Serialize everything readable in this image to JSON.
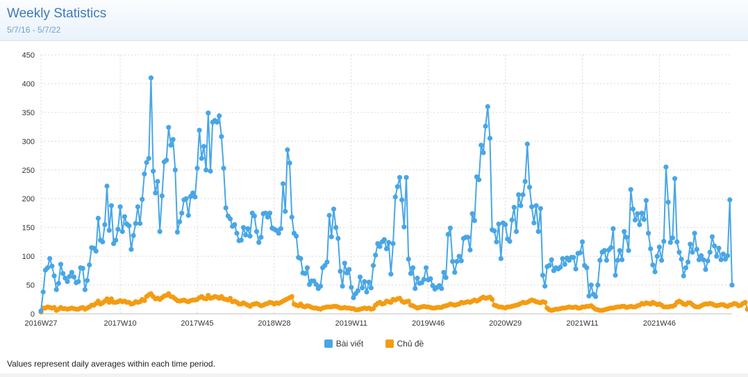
{
  "header": {
    "title": "Weekly Statistics",
    "subtitle": "5/7/16 - 5/7/22"
  },
  "footnote": "Values represent daily averages within each time period.",
  "colors": {
    "series1": "#48a6e6",
    "series2": "#f39c12",
    "grid": "#d9d9d9"
  },
  "chart_data": {
    "type": "line",
    "title": "Weekly Statistics",
    "xlabel": "",
    "ylabel": "",
    "ylim": [
      0,
      450
    ],
    "yticks": [
      0,
      50,
      100,
      150,
      200,
      250,
      300,
      350,
      400,
      450
    ],
    "xtick_labels": [
      {
        "index": 0,
        "label": "2016W27"
      },
      {
        "index": 36,
        "label": "2017W10"
      },
      {
        "index": 71,
        "label": "2017W45"
      },
      {
        "index": 106,
        "label": "2018W28"
      },
      {
        "index": 141,
        "label": "2019W11"
      },
      {
        "index": 176,
        "label": "2019W46"
      },
      {
        "index": 211,
        "label": "2020W29"
      },
      {
        "index": 246,
        "label": "2021W11"
      },
      {
        "index": 281,
        "label": "2021W46"
      }
    ],
    "legend": "bottom",
    "series": [
      {
        "name": "Bài viết",
        "color": "#48a6e6",
        "values": [
          5,
          38,
          76,
          80,
          96,
          83,
          66,
          42,
          53,
          86,
          70,
          62,
          56,
          65,
          72,
          64,
          54,
          56,
          80,
          79,
          42,
          58,
          85,
          115,
          114,
          109,
          166,
          128,
          125,
          155,
          222,
          145,
          188,
          122,
          128,
          147,
          186,
          143,
          169,
          156,
          153,
          112,
          136,
          157,
          186,
          157,
          199,
          243,
          263,
          270,
          410,
          248,
          210,
          230,
          143,
          205,
          264,
          267,
          324,
          293,
          303,
          250,
          142,
          160,
          175,
          198,
          200,
          171,
          204,
          210,
          203,
          253,
          319,
          270,
          291,
          250,
          349,
          248,
          333,
          336,
          333,
          344,
          308,
          253,
          184,
          170,
          165,
          152,
          155,
          140,
          127,
          128,
          150,
          137,
          148,
          135,
          175,
          170,
          143,
          124,
          133,
          174,
          175,
          168,
          175,
          149,
          147,
          145,
          140,
          148,
          226,
          178,
          285,
          262,
          168,
          140,
          135,
          98,
          96,
          71,
          70,
          80,
          51,
          57,
          57,
          51,
          44,
          48,
          80,
          84,
          90,
          171,
          134,
          182,
          150,
          131,
          74,
          48,
          88,
          71,
          77,
          46,
          28,
          35,
          40,
          64,
          45,
          56,
          38,
          55,
          45,
          84,
          102,
          122,
          117,
          125,
          129,
          113,
          124,
          69,
          122,
          203,
          221,
          237,
          198,
          151,
          237,
          95,
          70,
          80,
          44,
          62,
          53,
          54,
          60,
          80,
          59,
          61,
          49,
          43,
          46,
          49,
          44,
          72,
          63,
          138,
          149,
          91,
          72,
          91,
          100,
          92,
          131,
          133,
          133,
          111,
          174,
          162,
          238,
          233,
          293,
          280,
          326,
          360,
          305,
          146,
          144,
          125,
          156,
          96,
          158,
          155,
          130,
          126,
          163,
          185,
          143,
          207,
          188,
          207,
          230,
          295,
          220,
          186,
          158,
          188,
          143,
          183,
          67,
          48,
          82,
          84,
          94,
          75,
          80,
          78,
          81,
          96,
          86,
          97,
          93,
          98,
          98,
          78,
          105,
          106,
          125,
          84,
          80,
          31,
          50,
          34,
          30,
          50,
          93,
          107,
          110,
          93,
          111,
          115,
          148,
          67,
          93,
          110,
          94,
          143,
          133,
          110,
          216,
          182,
          163,
          174,
          155,
          175,
          164,
          197,
          140,
          113,
          85,
          73,
          100,
          116,
          93,
          126,
          255,
          194,
          124,
          132,
          235,
          125,
          107,
          95,
          66,
          80,
          90,
          121,
          107,
          140,
          112,
          94,
          101,
          94,
          77,
          92,
          107,
          134,
          118,
          100,
          114,
          94,
          104,
          95,
          101,
          198,
          50
        ]
      },
      {
        "name": "Chủ đề",
        "color": "#f39c12",
        "values": [
          3,
          10,
          10,
          12,
          11,
          10,
          11,
          6,
          8,
          11,
          9,
          9,
          8,
          9,
          10,
          9,
          8,
          8,
          10,
          11,
          8,
          10,
          12,
          15,
          15,
          18,
          22,
          17,
          19,
          22,
          26,
          20,
          26,
          20,
          20,
          21,
          23,
          21,
          22,
          20,
          20,
          17,
          18,
          21,
          20,
          21,
          25,
          23,
          30,
          33,
          35,
          30,
          26,
          27,
          25,
          28,
          31,
          32,
          35,
          30,
          29,
          26,
          23,
          22,
          23,
          24,
          22,
          21,
          23,
          24,
          24,
          25,
          28,
          30,
          27,
          26,
          32,
          27,
          28,
          30,
          29,
          27,
          30,
          26,
          25,
          24,
          27,
          21,
          22,
          20,
          17,
          17,
          19,
          17,
          15,
          13,
          16,
          17,
          18,
          16,
          14,
          15,
          17,
          18,
          20,
          19,
          17,
          19,
          18,
          20,
          22,
          24,
          26,
          28,
          30,
          17,
          15,
          14,
          17,
          13,
          12,
          14,
          13,
          11,
          10,
          10,
          9,
          8,
          10,
          11,
          12,
          12,
          12,
          13,
          13,
          12,
          10,
          10,
          11,
          10,
          10,
          9,
          9,
          7,
          7,
          8,
          9,
          10,
          9,
          10,
          8,
          9,
          15,
          18,
          20,
          17,
          18,
          22,
          21,
          20,
          25,
          24,
          26,
          27,
          22,
          20,
          21,
          22,
          15,
          14,
          12,
          10,
          11,
          12,
          13,
          12,
          12,
          11,
          10,
          10,
          11,
          11,
          11,
          13,
          14,
          15,
          17,
          16,
          15,
          16,
          17,
          20,
          19,
          20,
          21,
          20,
          22,
          24,
          22,
          24,
          27,
          29,
          27,
          28,
          29,
          25,
          15,
          14,
          12,
          12,
          11,
          10,
          12,
          12,
          13,
          14,
          15,
          16,
          18,
          20,
          19,
          20,
          22,
          24,
          23,
          21,
          20,
          19,
          21,
          20,
          10,
          7,
          6,
          7,
          8,
          8,
          9,
          10,
          10,
          11,
          12,
          11,
          11,
          12,
          10,
          10,
          12,
          12,
          13,
          13,
          14,
          11,
          8,
          7,
          6,
          6,
          7,
          8,
          9,
          10,
          10,
          11,
          12,
          12,
          13,
          13,
          11,
          12,
          13,
          12,
          12,
          14,
          15,
          18,
          17,
          19,
          18,
          17,
          20,
          18,
          16,
          17,
          15,
          12,
          12,
          12,
          13,
          13,
          15,
          20,
          22,
          20,
          17,
          16,
          19,
          19,
          16,
          13,
          12,
          12,
          14,
          16,
          17,
          17,
          18,
          17,
          15,
          14,
          15,
          16,
          16,
          14,
          13,
          15,
          16,
          18,
          17,
          14,
          15,
          18,
          20,
          8
        ]
      }
    ]
  }
}
